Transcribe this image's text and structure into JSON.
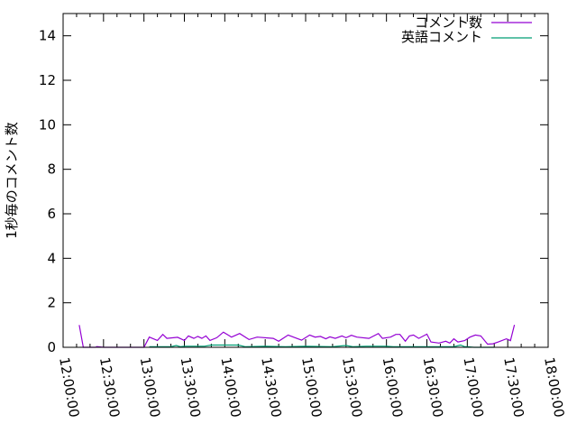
{
  "chart_data": {
    "type": "line",
    "title": "",
    "xlabel": "",
    "ylabel": "1秒毎のコメント数",
    "xlim": [
      "12:00:00",
      "18:00:00"
    ],
    "ylim": [
      0,
      15
    ],
    "yticks": [
      "0",
      "2",
      "4",
      "6",
      "8",
      "10",
      "12",
      "14"
    ],
    "xticks": [
      "12:00:00",
      "12:30:00",
      "13:00:00",
      "13:30:00",
      "14:00:00",
      "14:30:00",
      "15:00:00",
      "15:30:00",
      "16:00:00",
      "16:30:00",
      "17:00:00",
      "17:30:00",
      "18:00:00"
    ],
    "grid": false,
    "legend_position": "top-right",
    "series": [
      {
        "name": "コメント数",
        "color": "#9400d3",
        "x": [
          "12:12",
          "12:15",
          "12:24",
          "12:25",
          "12:30",
          "13:00",
          "13:04",
          "13:10",
          "13:14",
          "13:17",
          "13:25",
          "13:30",
          "13:33",
          "13:37",
          "13:40",
          "13:43",
          "13:46",
          "13:49",
          "13:54",
          "13:59",
          "14:05",
          "14:11",
          "14:18",
          "14:24",
          "14:36",
          "14:40",
          "14:47",
          "14:51",
          "14:57",
          "15:03",
          "15:07",
          "15:11",
          "15:15",
          "15:18",
          "15:22",
          "15:27",
          "15:30",
          "15:34",
          "15:38",
          "15:47",
          "15:54",
          "15:57",
          "16:03",
          "16:07",
          "16:10",
          "16:14",
          "16:17",
          "16:20",
          "16:24",
          "16:30",
          "16:33",
          "16:39",
          "16:44",
          "16:47",
          "16:50",
          "16:53",
          "16:58",
          "17:02",
          "17:06",
          "17:10",
          "17:15",
          "17:19",
          "17:23",
          "17:29",
          "17:32",
          "17:35"
        ],
        "y": [
          1.0,
          0,
          0,
          0.03,
          0,
          0,
          0.46,
          0.31,
          0.58,
          0.4,
          0.45,
          0.31,
          0.51,
          0.4,
          0.49,
          0.4,
          0.51,
          0.31,
          0.43,
          0.68,
          0.46,
          0.62,
          0.35,
          0.46,
          0.4,
          0.27,
          0.55,
          0.46,
          0.32,
          0.55,
          0.46,
          0.49,
          0.38,
          0.47,
          0.4,
          0.51,
          0.43,
          0.54,
          0.46,
          0.4,
          0.62,
          0.4,
          0.46,
          0.58,
          0.58,
          0.27,
          0.51,
          0.55,
          0.4,
          0.59,
          0.24,
          0.19,
          0.27,
          0.19,
          0.38,
          0.24,
          0.3,
          0.46,
          0.55,
          0.51,
          0.14,
          0.16,
          0.24,
          0.38,
          0.3,
          1.01
        ]
      },
      {
        "name": "英語コメント",
        "color": "#009e73",
        "x": [
          "13:04",
          "13:20",
          "13:24",
          "13:27",
          "13:30",
          "13:45",
          "13:50",
          "14:10",
          "14:15",
          "14:30",
          "14:45",
          "15:00",
          "15:20",
          "15:30",
          "15:35",
          "15:45",
          "16:00",
          "16:05",
          "16:30",
          "16:50",
          "16:55",
          "16:58",
          "17:00",
          "17:05",
          "17:20"
        ],
        "y": [
          0.03,
          0.03,
          0.08,
          0.03,
          0.05,
          0.05,
          0.1,
          0.1,
          0.03,
          0.05,
          0.03,
          0.05,
          0.03,
          0.08,
          0.03,
          0.05,
          0.05,
          0.03,
          0.03,
          0.03,
          0.1,
          0.03,
          0.03,
          0.0,
          0.0
        ]
      }
    ]
  }
}
